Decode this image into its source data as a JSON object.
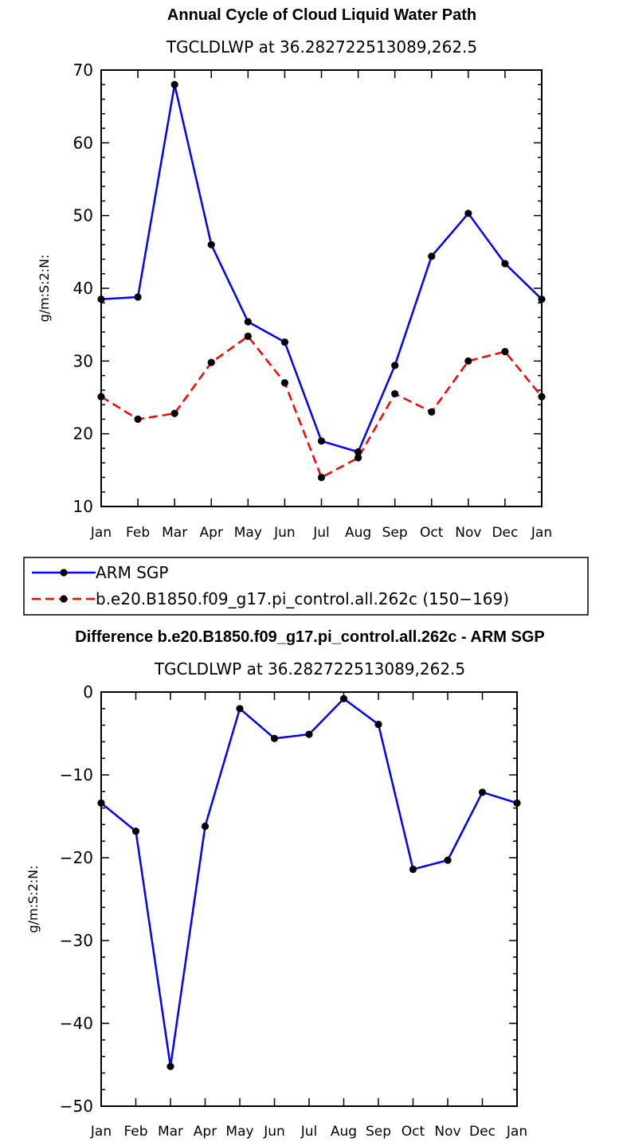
{
  "chart_data": [
    {
      "type": "line",
      "title": "Annual Cycle of Cloud Liquid Water Path",
      "subtitle": "TGCLDLWP at 36.282722513089,262.5",
      "ylabel": "g/m:S:2:N:",
      "xlabel": "",
      "ylim": [
        10,
        70
      ],
      "yticks": [
        10,
        20,
        30,
        40,
        50,
        60,
        70
      ],
      "categories": [
        "Jan",
        "Feb",
        "Mar",
        "Apr",
        "May",
        "Jun",
        "Jul",
        "Aug",
        "Sep",
        "Oct",
        "Nov",
        "Dec",
        "Jan"
      ],
      "series": [
        {
          "name": "ARM SGP",
          "color": "#0000ff",
          "dash": "solid",
          "values": [
            38.5,
            38.8,
            68,
            46,
            35.4,
            32.6,
            19,
            17.5,
            29.4,
            44.4,
            50.3,
            43.4,
            38.5
          ]
        },
        {
          "name": "b.e20.B1850.f09_g17.pi_control.all.262c (150−169)",
          "color": "#ff0000",
          "dash": "dashed",
          "values": [
            25.1,
            22,
            22.8,
            29.8,
            33.4,
            27,
            14,
            16.7,
            25.5,
            23,
            30,
            31.3,
            25.1
          ]
        }
      ],
      "legend_position": "below"
    },
    {
      "type": "line",
      "title": "Difference b.e20.B1850.f09_g17.pi_control.all.262c - ARM SGP",
      "subtitle": "TGCLDLWP at 36.282722513089,262.5",
      "ylabel": "g/m:S:2:N:",
      "xlabel": "",
      "ylim": [
        -50,
        0
      ],
      "yticks": [
        0,
        -10,
        -20,
        -30,
        -40,
        -50
      ],
      "categories": [
        "Jan",
        "Feb",
        "Mar",
        "Apr",
        "May",
        "Jun",
        "Jul",
        "Aug",
        "Sep",
        "Oct",
        "Nov",
        "Dec",
        "Jan"
      ],
      "series": [
        {
          "name": "Difference",
          "color": "#0000ff",
          "dash": "solid",
          "values": [
            -13.4,
            -16.8,
            -45.2,
            -16.2,
            -2,
            -5.6,
            -5.1,
            -0.8,
            -3.9,
            -21.4,
            -20.3,
            -12.1,
            -13.4
          ]
        }
      ]
    }
  ]
}
